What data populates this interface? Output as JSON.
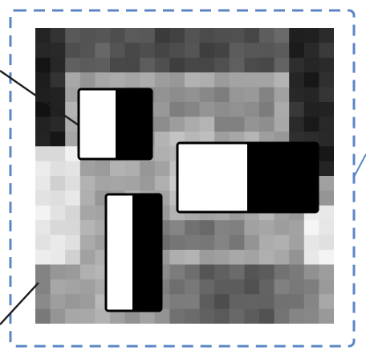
{
  "figure": {
    "description_icon": "face-pixel-mosaic",
    "frame_color": "#5b86c5",
    "connector_color": "#1f1f1f",
    "feature_colors": {
      "light": "#ffffff",
      "dark": "#000000",
      "outline": "#000000"
    },
    "features": [
      {
        "name": "two-rectangle-vertical-edge-feature",
        "kind": "edge",
        "white_side": "left",
        "black_side": "right"
      },
      {
        "name": "two-rectangle-horizontal-edge-feature",
        "kind": "edge",
        "white_side": "left",
        "black_side": "right"
      },
      {
        "name": "two-rectangle-line-feature",
        "kind": "line",
        "white_side": "left",
        "black_side": "right"
      }
    ]
  }
}
